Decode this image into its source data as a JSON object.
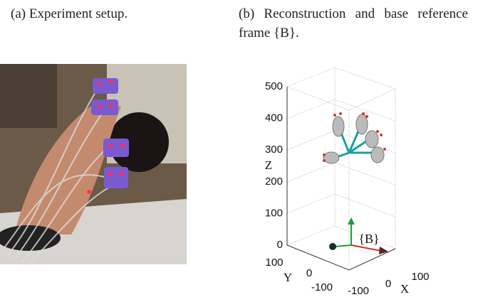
{
  "captions": {
    "a": "(a) Experiment setup.",
    "b": "(b) Reconstruction and base reference frame {B}."
  },
  "plot": {
    "z_label": "Z",
    "y_label": "Y",
    "x_label": "X",
    "frame_label": "{B}",
    "z_ticks": [
      "500",
      "400",
      "300",
      "200",
      "100",
      "0"
    ],
    "y_ticks": [
      "100",
      "0",
      "-100"
    ],
    "x_ticks": [
      "-100",
      "0",
      "100"
    ]
  }
}
